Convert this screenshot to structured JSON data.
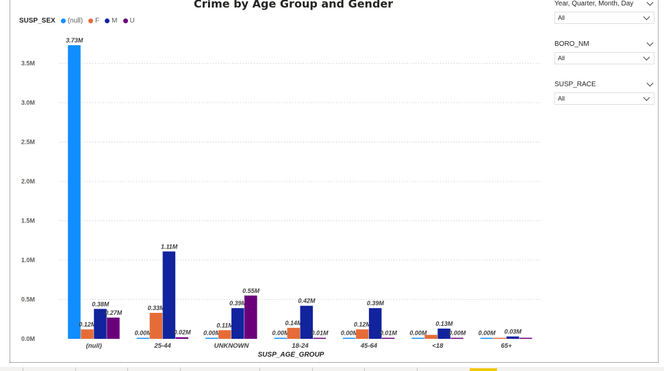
{
  "title": "Crime by Age Group and Gender",
  "legend": {
    "title": "SUSP_SEX",
    "items": [
      {
        "label": "(null)",
        "color": "#118dff"
      },
      {
        "label": "F",
        "color": "#e66c37"
      },
      {
        "label": "M",
        "color": "#12239e"
      },
      {
        "label": "U",
        "color": "#6b007b"
      }
    ]
  },
  "slicers": [
    {
      "label": "Year, Quarter, Month, Day",
      "value": "All"
    },
    {
      "label": "BORO_NM",
      "value": "All"
    },
    {
      "label": "SUSP_RACE",
      "value": "All"
    }
  ],
  "chart_data": {
    "type": "bar",
    "title": "Crime by Age Group and Gender",
    "xlabel": "SUSP_AGE_GROUP",
    "ylabel": "",
    "ylim": [
      0,
      3.8
    ],
    "yticks": [
      "0.0M",
      "0.5M",
      "1.0M",
      "1.5M",
      "2.0M",
      "2.5M",
      "3.0M",
      "3.5M"
    ],
    "categories": [
      "(null)",
      "25-44",
      "UNKNOWN",
      "18-24",
      "45-64",
      "<18",
      "65+"
    ],
    "series": [
      {
        "name": "(null)",
        "color": "#118dff",
        "values": [
          3.73,
          0.0,
          0.0,
          0.0,
          0.0,
          0.0,
          0.0
        ],
        "labels": [
          "3.73M",
          "0.00M",
          "0.00M",
          "0.00M",
          "0.00M",
          "0.00M",
          "0.00M"
        ]
      },
      {
        "name": "F",
        "color": "#e66c37",
        "values": [
          0.12,
          0.33,
          0.11,
          0.14,
          0.12,
          0.05,
          0.01
        ],
        "labels": [
          "0.12M",
          "0.33M",
          "0.11M",
          "0.14M",
          "0.12M",
          "",
          ""
        ]
      },
      {
        "name": "M",
        "color": "#12239e",
        "values": [
          0.38,
          1.11,
          0.39,
          0.42,
          0.39,
          0.13,
          0.03
        ],
        "labels": [
          "0.38M",
          "1.11M",
          "0.39M",
          "0.42M",
          "0.39M",
          "0.13M",
          "0.03M"
        ]
      },
      {
        "name": "U",
        "color": "#6b007b",
        "values": [
          0.27,
          0.02,
          0.55,
          0.01,
          0.01,
          0.0,
          0.0
        ],
        "labels": [
          "0.27M",
          "0.02M",
          "0.55M",
          "0.01M",
          "0.01M",
          "0.00M",
          ""
        ]
      }
    ],
    "grid": true,
    "legend_position": "top-left"
  }
}
